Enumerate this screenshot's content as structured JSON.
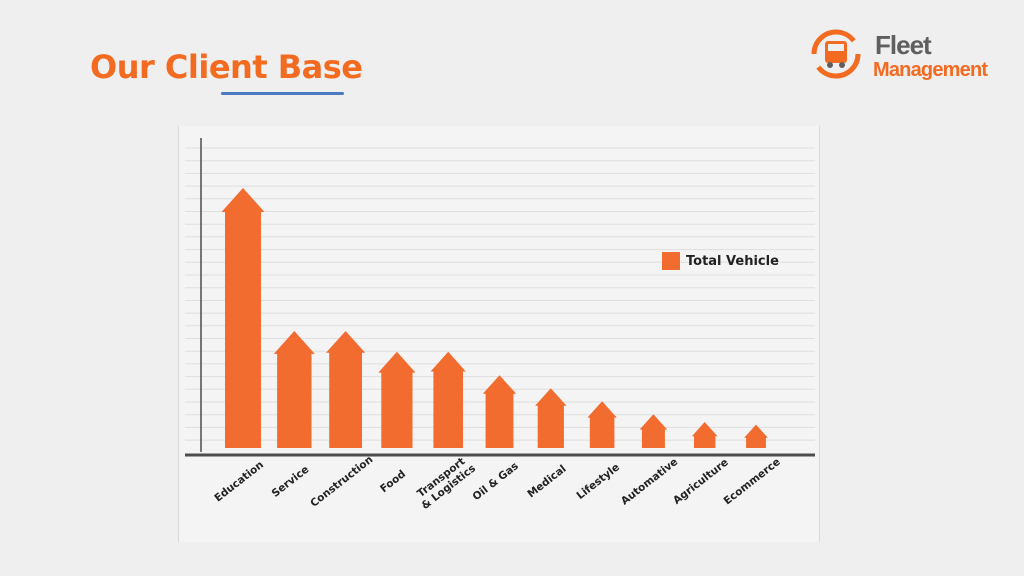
{
  "page": {
    "title": "Our Client Base",
    "title_color": "#f26b21",
    "underline_color": "#4a7bc0"
  },
  "logo": {
    "line1": "Fleet",
    "line2": "Management",
    "line1_color": "#5f5f5f",
    "line2_color": "#f26b21",
    "icon": "truck-recycle-icon"
  },
  "chart_data": {
    "type": "bar",
    "categories": [
      "Education",
      "Service",
      "Construction",
      "Food",
      "Transport\n& Logistics",
      "Oil & Gas",
      "Medical",
      "Lifestyle",
      "Automative",
      "Agriculture",
      "Ecommerce"
    ],
    "series": [
      {
        "name": "Total Vehicle",
        "values": [
          100,
          45,
          45,
          37,
          37,
          28,
          23,
          18,
          13,
          10,
          9
        ],
        "color": "#f26b2f"
      }
    ],
    "ylim": [
      0,
      100
    ],
    "grid": true,
    "legend_position": "right",
    "mark_style": "arrow",
    "axis_color": "#4d4d4d",
    "grid_color": "#dedede"
  }
}
